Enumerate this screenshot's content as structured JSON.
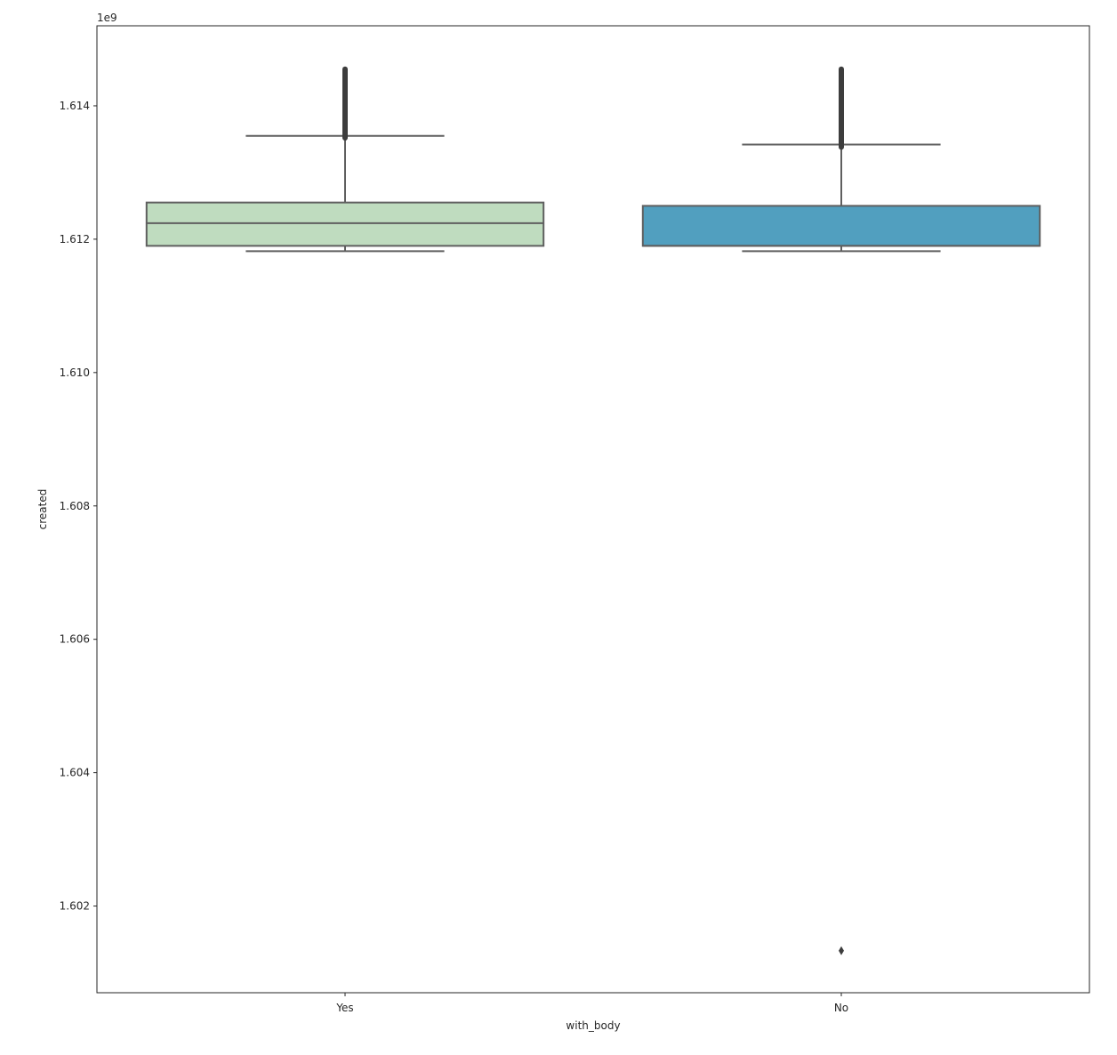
{
  "chart_data": {
    "type": "boxplot",
    "title": "",
    "xlabel": "with_body",
    "ylabel": "created",
    "offset_text": "1e9",
    "ylim": [
      1600.7,
      1615.2
    ],
    "y_ticks": [
      1602,
      1604,
      1606,
      1608,
      1610,
      1612,
      1614
    ],
    "y_tick_labels": [
      "1.602",
      "1.604",
      "1.606",
      "1.608",
      "1.610",
      "1.612",
      "1.614"
    ],
    "grid": false,
    "categories": [
      "Yes",
      "No"
    ],
    "boxes": [
      {
        "category": "Yes",
        "color": "#bfdcbf",
        "whisker_low": 1611.82,
        "q1": 1611.9,
        "median": 1612.24,
        "q3": 1612.55,
        "whisker_high": 1613.55,
        "outliers_range": [
          1613.52,
          1614.55
        ],
        "outliers": []
      },
      {
        "category": "No",
        "color": "#519fbf",
        "whisker_low": 1611.82,
        "q1": 1611.9,
        "median": 1611.9,
        "q3": 1612.5,
        "whisker_high": 1613.42,
        "outliers_range": [
          1613.38,
          1614.55
        ],
        "outliers": [
          1601.33
        ]
      }
    ]
  }
}
